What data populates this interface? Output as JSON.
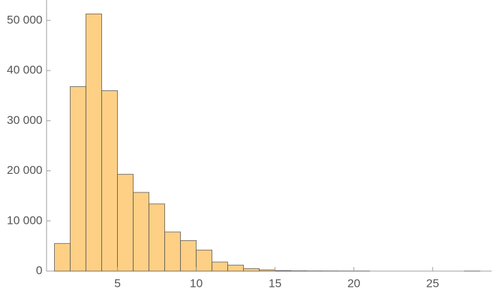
{
  "chart_data": {
    "type": "histogram",
    "bins": [
      1,
      2,
      3,
      4,
      5,
      6,
      7,
      8,
      9,
      10,
      11,
      12,
      13,
      14,
      15,
      16,
      17,
      18,
      19,
      20,
      21,
      22,
      23,
      24,
      25,
      26,
      27,
      28
    ],
    "values": [
      5500,
      36800,
      51300,
      36000,
      19300,
      15700,
      13400,
      7800,
      6100,
      4200,
      1800,
      1200,
      500,
      250,
      100,
      60,
      40,
      30,
      20,
      20,
      0,
      0,
      0,
      0,
      0,
      0,
      10
    ],
    "color": "#fdd085",
    "xlim": [
      0.5,
      28.7
    ],
    "xticks": [
      5,
      10,
      15,
      20,
      25
    ],
    "ylim": [
      0,
      53800
    ],
    "yticks": [
      0,
      {
        "value": 10000,
        "label": "10 000"
      },
      {
        "value": 20000,
        "label": "20 000"
      },
      {
        "value": 30000,
        "label": "30 000"
      },
      {
        "value": 40000,
        "label": "40 000"
      },
      {
        "value": 50000,
        "label": "50 000"
      }
    ]
  }
}
